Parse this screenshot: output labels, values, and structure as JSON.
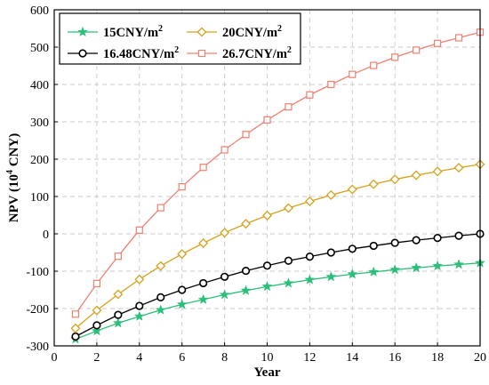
{
  "chart_data": {
    "type": "line",
    "title": "",
    "xlabel": "Year",
    "ylabel": "NPV (10",
    "ylabel_sup": "4",
    "ylabel_tail": " CNY)",
    "xlim": [
      0,
      20
    ],
    "ylim": [
      -300,
      600
    ],
    "xticks": [
      0,
      2,
      4,
      6,
      8,
      10,
      12,
      14,
      16,
      18,
      20
    ],
    "yticks": [
      -300,
      -200,
      -100,
      0,
      100,
      200,
      300,
      400,
      500,
      600
    ],
    "grid": true,
    "legend_position": "top-left",
    "x": [
      1,
      2,
      3,
      4,
      5,
      6,
      7,
      8,
      9,
      10,
      11,
      12,
      13,
      14,
      15,
      16,
      17,
      18,
      19,
      20
    ],
    "series": [
      {
        "name": "15CNY/m",
        "unit_sup": "2",
        "color": "#2bbf7a",
        "marker": "star",
        "values": [
          -282,
          -260,
          -239,
          -221,
          -204,
          -189,
          -176,
          -163,
          -152,
          -141,
          -132,
          -123,
          -115,
          -108,
          -102,
          -96,
          -91,
          -86,
          -82,
          -78
        ]
      },
      {
        "name": "16.48CNY/m",
        "unit_sup": "2",
        "color": "#000000",
        "marker": "circle",
        "values": [
          -275,
          -245,
          -217,
          -193,
          -170,
          -150,
          -132,
          -115,
          -99,
          -85,
          -72,
          -61,
          -50,
          -40,
          -32,
          -24,
          -17,
          -11,
          -5,
          0
        ]
      },
      {
        "name": "20CNY/m",
        "unit_sup": "2",
        "color": "#d6a21e",
        "marker": "diamond",
        "values": [
          -253,
          -205,
          -162,
          -122,
          -86,
          -54,
          -25,
          3,
          27,
          49,
          69,
          87,
          104,
          119,
          133,
          146,
          157,
          167,
          177,
          186
        ]
      },
      {
        "name": "26.7CNY/m",
        "unit_sup": "2",
        "color": "#f08070",
        "marker": "square",
        "values": [
          -215,
          -133,
          -60,
          10,
          70,
          126,
          178,
          225,
          266,
          305,
          340,
          372,
          400,
          427,
          451,
          473,
          492,
          510,
          525,
          540
        ]
      }
    ],
    "legend_order": [
      0,
      2,
      1,
      3
    ]
  }
}
